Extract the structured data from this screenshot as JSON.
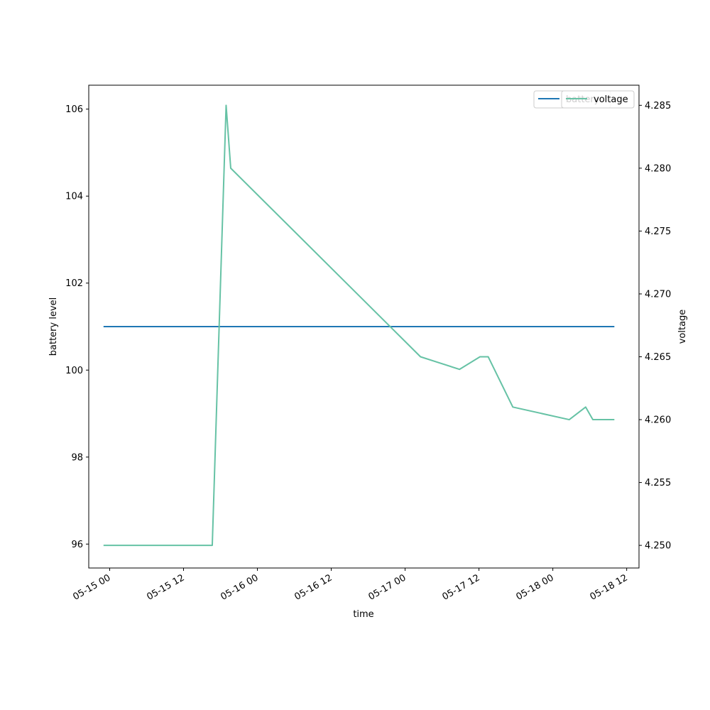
{
  "chart_data": {
    "type": "line",
    "xlabel": "time",
    "ylabel_left": "battery level",
    "ylabel_right": "voltage",
    "xlim": [
      "2023-05-14T20:36",
      "2023-05-18T14:00"
    ],
    "ylim_left": [
      95.45,
      106.55
    ],
    "ylim_right": [
      4.2482,
      4.2866
    ],
    "x_tick_labels": [
      "05-15 00",
      "05-15 12",
      "05-16 00",
      "05-16 12",
      "05-17 00",
      "05-17 12",
      "05-18 00",
      "05-18 12"
    ],
    "x_tick_values": [
      "2023-05-15T00:00",
      "2023-05-15T12:00",
      "2023-05-16T00:00",
      "2023-05-16T12:00",
      "2023-05-17T00:00",
      "2023-05-17T12:00",
      "2023-05-18T00:00",
      "2023-05-18T12:00"
    ],
    "y_left_ticks": [
      96,
      98,
      100,
      102,
      104,
      106
    ],
    "y_right_ticks": [
      4.25,
      4.255,
      4.26,
      4.265,
      4.27,
      4.275,
      4.28,
      4.285
    ],
    "y_right_tick_labels": [
      "4.250",
      "4.255",
      "4.260",
      "4.265",
      "4.270",
      "4.275",
      "4.280",
      "4.285"
    ],
    "legend_placement": "top-right",
    "grid": false,
    "series": [
      {
        "name": "battery",
        "axis": "left",
        "color": "#1f77b4",
        "x": [
          "2023-05-14T23:00",
          "2023-05-18T10:00"
        ],
        "y": [
          101,
          101
        ]
      },
      {
        "name": "voltage",
        "axis": "right",
        "color": "#66c2a5",
        "x": [
          "2023-05-14T23:00",
          "2023-05-15T16:40",
          "2023-05-15T18:55",
          "2023-05-15T19:40",
          "2023-05-17T02:30",
          "2023-05-17T08:50",
          "2023-05-17T12:10",
          "2023-05-17T13:30",
          "2023-05-17T17:30",
          "2023-05-18T02:40",
          "2023-05-18T05:20",
          "2023-05-18T06:30",
          "2023-05-18T10:00"
        ],
        "y": [
          4.25,
          4.25,
          4.285,
          4.28,
          4.265,
          4.264,
          4.265,
          4.265,
          4.261,
          4.26,
          4.261,
          4.26,
          4.26
        ]
      }
    ]
  }
}
